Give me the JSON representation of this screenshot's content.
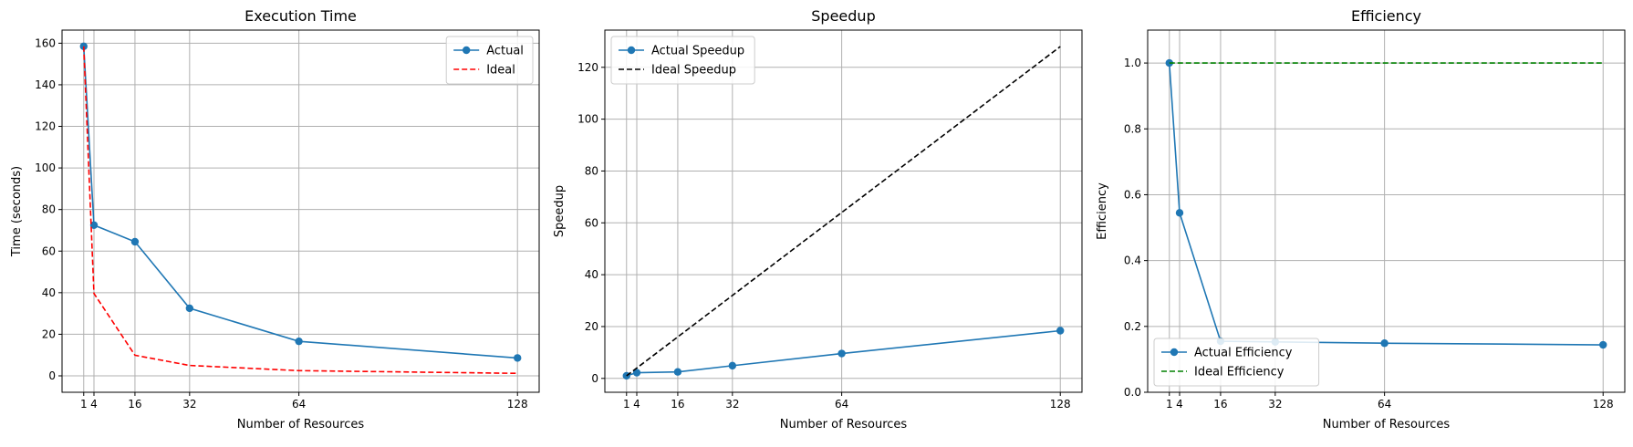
{
  "chart_data": [
    {
      "type": "line",
      "title": "Execution Time",
      "xlabel": "Number of Resources",
      "ylabel": "Time (seconds)",
      "xlim": [
        -5.35,
        134.35
      ],
      "ylim": [
        -7.9,
        166.3
      ],
      "x_ticks": [
        1,
        4,
        16,
        32,
        64,
        128
      ],
      "y_ticks": [
        0,
        20,
        40,
        60,
        80,
        100,
        120,
        140,
        160
      ],
      "grid": true,
      "legend_position": "upper right",
      "series": [
        {
          "name": "Actual",
          "x": [
            1,
            4,
            16,
            32,
            64,
            128
          ],
          "y": [
            158.5,
            72.5,
            64.5,
            32.5,
            16.6,
            8.6
          ],
          "color": "#1f77b4",
          "style": "solid",
          "marker": "circle"
        },
        {
          "name": "Ideal",
          "x": [
            1,
            4,
            16,
            32,
            64,
            128
          ],
          "y": [
            158.5,
            39.6,
            9.9,
            5.0,
            2.5,
            1.2
          ],
          "color": "#ff0000",
          "style": "dashed",
          "marker": "none"
        }
      ]
    },
    {
      "type": "line",
      "title": "Speedup",
      "xlabel": "Number of Resources",
      "ylabel": "Speedup",
      "xlim": [
        -5.35,
        134.35
      ],
      "ylim": [
        -5.35,
        134.35
      ],
      "x_ticks": [
        1,
        4,
        16,
        32,
        64,
        128
      ],
      "y_ticks": [
        0,
        20,
        40,
        60,
        80,
        100,
        120
      ],
      "grid": true,
      "legend_position": "upper left",
      "series": [
        {
          "name": "Actual Speedup",
          "x": [
            1,
            4,
            16,
            32,
            64,
            128
          ],
          "y": [
            1.0,
            2.2,
            2.5,
            4.9,
            9.6,
            18.4
          ],
          "color": "#1f77b4",
          "style": "solid",
          "marker": "circle"
        },
        {
          "name": "Ideal Speedup",
          "x": [
            1,
            4,
            16,
            32,
            64,
            128
          ],
          "y": [
            1,
            4,
            16,
            32,
            64,
            128
          ],
          "color": "#000000",
          "style": "dashed",
          "marker": "none"
        }
      ]
    },
    {
      "type": "line",
      "title": "Efficiency",
      "xlabel": "Number of Resources",
      "ylabel": "Efficiency",
      "xlim": [
        -5.35,
        134.35
      ],
      "ylim": [
        0.0,
        1.1
      ],
      "x_ticks": [
        1,
        4,
        16,
        32,
        64,
        128
      ],
      "y_ticks": [
        "0.0",
        "0.2",
        "0.4",
        "0.6",
        "0.8",
        "1.0"
      ],
      "grid": true,
      "legend_position": "lower left",
      "series": [
        {
          "name": "Actual Efficiency",
          "x": [
            1,
            4,
            16,
            32,
            64,
            128
          ],
          "y": [
            1.0,
            0.545,
            0.155,
            0.153,
            0.149,
            0.144
          ],
          "color": "#1f77b4",
          "style": "solid",
          "marker": "circle"
        },
        {
          "name": "Ideal Efficiency",
          "x": [
            1,
            4,
            16,
            32,
            64,
            128
          ],
          "y": [
            1,
            1,
            1,
            1,
            1,
            1
          ],
          "color": "#008000",
          "style": "dashed",
          "marker": "none"
        }
      ]
    }
  ]
}
